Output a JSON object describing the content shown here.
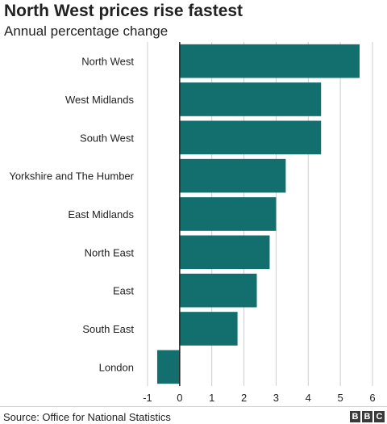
{
  "header": {
    "title": "North West prices rise fastest",
    "subtitle": "Annual percentage change"
  },
  "footer": {
    "source": "Source: Office for National Statistics",
    "logo_text": "BBC"
  },
  "colors": {
    "bar": "#136e6e",
    "grid": "#cccccc",
    "zero_line": "#222222",
    "text": "#222222"
  },
  "chart_data": {
    "type": "bar",
    "orientation": "horizontal",
    "title": "North West prices rise fastest",
    "subtitle": "Annual percentage change",
    "categories": [
      "North West",
      "West Midlands",
      "South West",
      "Yorkshire and The Humber",
      "East Midlands",
      "North East",
      "East",
      "South East",
      "London"
    ],
    "values": [
      5.6,
      4.4,
      4.4,
      3.3,
      3.0,
      2.8,
      2.4,
      1.8,
      -0.7
    ],
    "xlim": [
      -1,
      6
    ],
    "xticks": [
      -1,
      0,
      1,
      2,
      3,
      4,
      5,
      6
    ],
    "grid": true,
    "legend": "none"
  }
}
